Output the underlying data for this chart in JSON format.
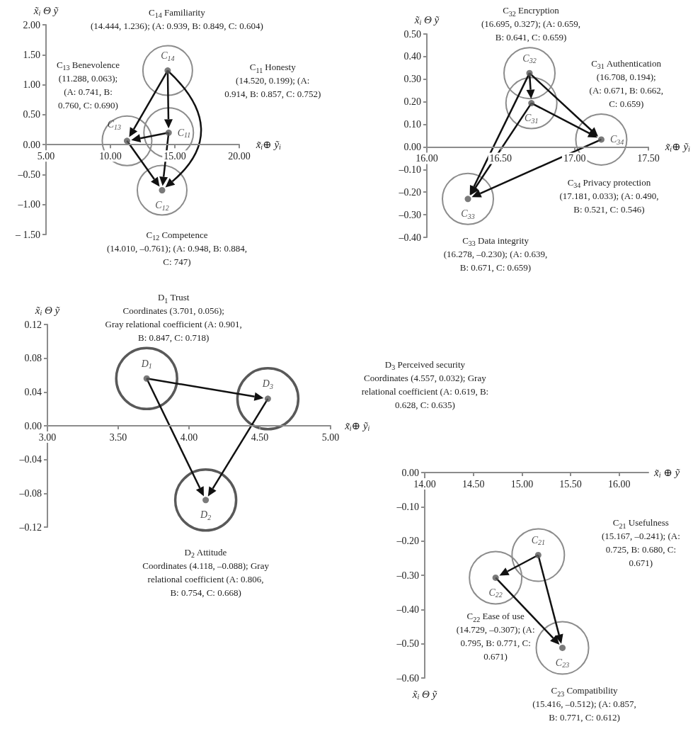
{
  "chart_data": [
    {
      "type": "scatter",
      "xlabel": "x̃$_{i}$⊕ ỹ$_{i}$",
      "ylabel": "x̃$_{i}$ Θ ỹ",
      "xlim": [
        5,
        20
      ],
      "xticks": [
        {
          "value": 5,
          "label": "5.00"
        },
        {
          "value": 10,
          "label": "10.00"
        },
        {
          "value": 15,
          "label": "15.00"
        },
        {
          "value": 20,
          "label": "20.00"
        }
      ],
      "ylim": [
        -1.5,
        2
      ],
      "yticks": [
        {
          "value": -1.5,
          "label": "– 1.50"
        },
        {
          "value": -1,
          "label": "–1.00"
        },
        {
          "value": -0.5,
          "label": "–0.50"
        },
        {
          "value": 0,
          "label": "0.00"
        },
        {
          "value": 0.5,
          "label": "0.50"
        },
        {
          "value": 1,
          "label": "1.00"
        },
        {
          "value": 1.5,
          "label": "1.50"
        },
        {
          "value": 2,
          "label": "2.00"
        }
      ],
      "marker": "circle",
      "series": [
        {
          "name": "C$_{14}$",
          "color": "#595959",
          "x": [
            14.444
          ],
          "values": [
            1.236
          ]
        },
        {
          "name": "C$_{13}$",
          "color": "#595959",
          "x": [
            11.288
          ],
          "values": [
            0.063
          ]
        },
        {
          "name": "C$_{11}$",
          "color": "#595959",
          "x": [
            14.52
          ],
          "values": [
            0.199
          ]
        },
        {
          "name": "C$_{12}$",
          "color": "#595959",
          "x": [
            14.01
          ],
          "values": [
            -0.761
          ]
        }
      ],
      "annotations": [
        "C$_{14}$ Familiarity\n(14.444, 1.236); (A: 0.939, B: 0.849, C: 0.604)",
        "C$_{13}$ Benevolence\n(11.288, 0.063);\n(A: 0.741, B:\n0.760, C: 0.690)",
        "C$_{11}$ Honesty\n(14.520, 0.199); (A:\n0.914, B: 0.857, C: 0.752)",
        "C$_{12}$ Competence\n(14.010, –0.761); (A: 0.948, B: 0.884,\nC: 747)"
      ]
    },
    {
      "type": "scatter",
      "xlabel": "x̃$_{i}$⊕ ỹ$_{i}$",
      "ylabel": "x̃$_{i}$ Θ ỹ",
      "xlim": [
        16,
        17.5
      ],
      "xticks": [
        {
          "value": 16,
          "label": "16.00"
        },
        {
          "value": 16.5,
          "label": "16.50"
        },
        {
          "value": 17,
          "label": "17.00"
        },
        {
          "value": 17.5,
          "label": "17.50"
        }
      ],
      "ylim": [
        -0.4,
        0.5
      ],
      "yticks": [
        {
          "value": -0.4,
          "label": "–0.40"
        },
        {
          "value": -0.3,
          "label": "–0.30"
        },
        {
          "value": -0.2,
          "label": "–0.20"
        },
        {
          "value": -0.1,
          "label": "–0.10"
        },
        {
          "value": 0,
          "label": "0.00"
        },
        {
          "value": 0.1,
          "label": "0.10"
        },
        {
          "value": 0.2,
          "label": "0.20"
        },
        {
          "value": 0.3,
          "label": "0.30"
        },
        {
          "value": 0.4,
          "label": "0.40"
        },
        {
          "value": 0.5,
          "label": "0.50"
        }
      ],
      "marker": "circle",
      "series": [
        {
          "name": "C$_{32}$",
          "color": "#595959",
          "x": [
            16.695
          ],
          "values": [
            0.327
          ]
        },
        {
          "name": "C$_{31}$",
          "color": "#595959",
          "x": [
            16.708
          ],
          "values": [
            0.194
          ]
        },
        {
          "name": "C$_{34}$",
          "color": "#595959",
          "x": [
            17.181
          ],
          "values": [
            0.033
          ]
        },
        {
          "name": "C$_{33}$",
          "color": "#595959",
          "x": [
            16.278
          ],
          "values": [
            -0.23
          ]
        }
      ],
      "annotations": [
        "C$_{32}$ Encryption\n(16.695, 0.327); (A: 0.659,\nB: 0.641, C: 0.659)",
        "C$_{31}$ Authentication\n(16.708, 0.194);\n(A: 0.671, B: 0.662,\nC: 0.659)",
        "C$_{34}$ Privacy protection\n(17.181, 0.033); (A: 0.490,\nB: 0.521, C: 0.546)",
        "C$_{33}$ Data integrity\n(16.278, –0.230); (A: 0.639,\nB: 0.671, C: 0.659)"
      ]
    },
    {
      "type": "scatter",
      "xlabel": "x̃$_{i}$⊕ ỹ$_{i}$",
      "ylabel": "x̃$_{i}$ Θ ỹ",
      "xlim": [
        3,
        5
      ],
      "xticks": [
        {
          "value": 3,
          "label": "3.00"
        },
        {
          "value": 3.5,
          "label": "3.50"
        },
        {
          "value": 4,
          "label": "4.00"
        },
        {
          "value": 4.5,
          "label": "4.50"
        },
        {
          "value": 5,
          "label": "5.00"
        }
      ],
      "ylim": [
        -0.12,
        0.12
      ],
      "yticks": [
        {
          "value": -0.12,
          "label": "–0.12"
        },
        {
          "value": -0.08,
          "label": "–0.08"
        },
        {
          "value": -0.04,
          "label": "–0.04"
        },
        {
          "value": 0,
          "label": "0.00"
        },
        {
          "value": 0.04,
          "label": "0.04"
        },
        {
          "value": 0.08,
          "label": "0.08"
        },
        {
          "value": 0.12,
          "label": "0.12"
        }
      ],
      "marker": "circle",
      "series": [
        {
          "name": "D$_{1}$",
          "color": "#595959",
          "x": [
            3.701
          ],
          "values": [
            0.056
          ]
        },
        {
          "name": "D$_{3}$",
          "color": "#595959",
          "x": [
            4.557
          ],
          "values": [
            0.032
          ]
        },
        {
          "name": "D$_{2}$",
          "color": "#595959",
          "x": [
            4.118
          ],
          "values": [
            -0.088
          ]
        }
      ],
      "annotations": [
        "D$_{1}$ Trust\nCoordinates (3.701, 0.056);\nGray relational coefficient (A: 0.901,\nB: 0.847, C: 0.718)",
        "D$_{3}$ Perceived security\nCoordinates (4.557, 0.032); Gray\nrelational coefficient (A: 0.619, B:\n0.628, C: 0.635)",
        "D$_{2}$ Attitude\nCoordinates (4.118, –0.088); Gray\nrelational coefficient (A: 0.806,\nB: 0.754, C: 0.668)"
      ]
    },
    {
      "type": "scatter",
      "xlabel": "x̃$_{i}$ ⊕ ỹ",
      "ylabel": "x̃$_{i}$ Θ ỹ",
      "xlim": [
        14,
        16.3
      ],
      "xticks": [
        {
          "value": 14,
          "label": "14.00"
        },
        {
          "value": 14.5,
          "label": "14.50"
        },
        {
          "value": 15,
          "label": "15.00"
        },
        {
          "value": 15.5,
          "label": "15.50"
        },
        {
          "value": 16,
          "label": "16.00"
        }
      ],
      "ylim": [
        -0.6,
        0
      ],
      "yticks": [
        {
          "value": -0.6,
          "label": "–0.60"
        },
        {
          "value": -0.5,
          "label": "–0.50"
        },
        {
          "value": -0.4,
          "label": "–0.40"
        },
        {
          "value": -0.3,
          "label": "–0.30"
        },
        {
          "value": -0.2,
          "label": "–0.20"
        },
        {
          "value": -0.1,
          "label": "–0.10"
        },
        {
          "value": 0,
          "label": "0.00"
        }
      ],
      "marker": "circle",
      "series": [
        {
          "name": "C$_{21}$",
          "color": "#595959",
          "x": [
            15.167
          ],
          "values": [
            -0.241
          ]
        },
        {
          "name": "C$_{22}$",
          "color": "#595959",
          "x": [
            14.729
          ],
          "values": [
            -0.307
          ]
        },
        {
          "name": "C$_{23}$",
          "color": "#595959",
          "x": [
            15.416
          ],
          "values": [
            -0.512
          ]
        }
      ],
      "annotations": [
        "C$_{21}$ Usefulness\n(15.167, –0.241); (A:\n0.725, B: 0.680, C:\n0.671)",
        "C$_{22}$ Ease of use\n(14.729, –0.307); (A:\n0.795, B: 0.771, C:\n0.671)",
        "C$_{23}$ Compatibility\n(15.416, –0.512); (A: 0.857,\nB: 0.771, C: 0.612)"
      ]
    }
  ]
}
